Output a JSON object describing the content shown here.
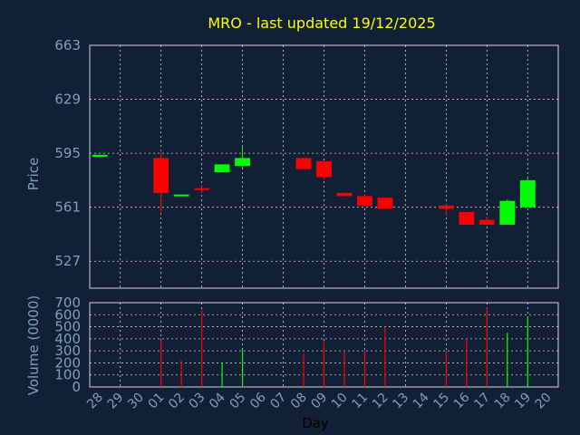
{
  "chart_data": [
    {
      "type": "candlestick",
      "title": "MRO - last updated 19/12/2025",
      "ylabel": "Price",
      "ylim": [
        510,
        663
      ],
      "yticks": [
        "663",
        "629",
        "595",
        "561",
        "527"
      ],
      "ytick_values": [
        663,
        629,
        595,
        561,
        527
      ],
      "grid": true,
      "colors": {
        "up": "#00ff00",
        "down": "#ff0000",
        "background": "#112034",
        "grid": "#ffffff",
        "text": "#7f9fbf",
        "title": "#ffff00"
      },
      "x": [
        "28",
        "29",
        "30",
        "01",
        "02",
        "03",
        "04",
        "05",
        "06",
        "07",
        "08",
        "09",
        "10",
        "11",
        "12",
        "13",
        "14",
        "15",
        "16",
        "17",
        "18",
        "19",
        "20"
      ],
      "candles": [
        {
          "day": "28",
          "open": 594,
          "close": 594,
          "high": 594,
          "low": 594
        },
        {
          "day": "01",
          "open": 592,
          "close": 570,
          "high": 597,
          "low": 557
        },
        {
          "day": "02",
          "open": 569,
          "close": 569,
          "high": 569,
          "low": 568
        },
        {
          "day": "03",
          "open": 573,
          "close": 572,
          "high": 575,
          "low": 570
        },
        {
          "day": "04",
          "open": 583,
          "close": 588,
          "high": 588,
          "low": 583
        },
        {
          "day": "05",
          "open": 587,
          "close": 592,
          "high": 599,
          "low": 586
        },
        {
          "day": "08",
          "open": 592,
          "close": 585,
          "high": 592,
          "low": 585
        },
        {
          "day": "09",
          "open": 590,
          "close": 580,
          "high": 590,
          "low": 578
        },
        {
          "day": "10",
          "open": 570,
          "close": 568,
          "high": 570,
          "low": 568
        },
        {
          "day": "11",
          "open": 568,
          "close": 562,
          "high": 569,
          "low": 561
        },
        {
          "day": "12",
          "open": 567,
          "close": 560,
          "high": 567,
          "low": 560
        },
        {
          "day": "15",
          "open": 562,
          "close": 560,
          "high": 563,
          "low": 556
        },
        {
          "day": "16",
          "open": 558,
          "close": 550,
          "high": 558,
          "low": 550
        },
        {
          "day": "17",
          "open": 553,
          "close": 550,
          "high": 555,
          "low": 550
        },
        {
          "day": "18",
          "open": 550,
          "close": 565,
          "high": 566,
          "low": 550
        },
        {
          "day": "19",
          "open": 561,
          "close": 578,
          "high": 580,
          "low": 561
        }
      ]
    },
    {
      "type": "bar",
      "ylabel": "Volume (0000)",
      "xlabel": "Day",
      "ylim": [
        0,
        700
      ],
      "yticks": [
        "700",
        "600",
        "500",
        "400",
        "300",
        "200",
        "100",
        "0"
      ],
      "ytick_values": [
        700,
        600,
        500,
        400,
        300,
        200,
        100,
        0
      ],
      "categories": [
        "28",
        "29",
        "30",
        "01",
        "02",
        "03",
        "04",
        "05",
        "06",
        "07",
        "08",
        "09",
        "10",
        "11",
        "12",
        "13",
        "14",
        "15",
        "16",
        "17",
        "18",
        "19",
        "20"
      ],
      "bars": [
        {
          "day": "01",
          "value": 390,
          "dir": "down"
        },
        {
          "day": "02",
          "value": 220,
          "dir": "down"
        },
        {
          "day": "03",
          "value": 640,
          "dir": "down"
        },
        {
          "day": "04",
          "value": 200,
          "dir": "up"
        },
        {
          "day": "05",
          "value": 310,
          "dir": "up"
        },
        {
          "day": "08",
          "value": 280,
          "dir": "down"
        },
        {
          "day": "09",
          "value": 380,
          "dir": "down"
        },
        {
          "day": "10",
          "value": 300,
          "dir": "down"
        },
        {
          "day": "11",
          "value": 300,
          "dir": "down"
        },
        {
          "day": "12",
          "value": 500,
          "dir": "down"
        },
        {
          "day": "15",
          "value": 300,
          "dir": "down"
        },
        {
          "day": "16",
          "value": 400,
          "dir": "down"
        },
        {
          "day": "17",
          "value": 660,
          "dir": "down"
        },
        {
          "day": "18",
          "value": 450,
          "dir": "up"
        },
        {
          "day": "19",
          "value": 580,
          "dir": "up"
        }
      ]
    }
  ]
}
